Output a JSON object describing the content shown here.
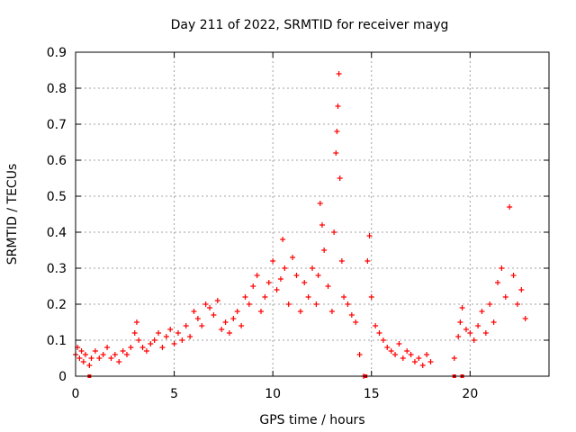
{
  "chart_data": {
    "type": "scatter",
    "title": "Day 211 of 2022, SRMTID for receiver mayg",
    "xlabel": "GPS time / hours",
    "ylabel": "SRMTID / TECUs",
    "xlim": [
      0,
      24
    ],
    "ylim": [
      0,
      0.9
    ],
    "xticks": [
      0,
      5,
      10,
      15,
      20
    ],
    "xtick_labels": [
      "0",
      "5",
      "10",
      "15",
      "20"
    ],
    "yticks": [
      0,
      0.1,
      0.2,
      0.3,
      0.4,
      0.5,
      0.6,
      0.7,
      0.8,
      0.9
    ],
    "ytick_labels": [
      "0",
      "0.1",
      "0.2",
      "0.3",
      "0.4",
      "0.5",
      "0.6",
      "0.7",
      "0.8",
      "0.9"
    ],
    "grid": true,
    "marker": "plus",
    "color": "#ff0000",
    "series": [
      {
        "name": "SRMTID",
        "x": [
          0.0,
          0.1,
          0.2,
          0.3,
          0.4,
          0.5,
          0.7,
          0.8,
          1.0,
          1.2,
          1.4,
          1.6,
          1.8,
          2.0,
          2.2,
          2.4,
          2.6,
          2.8,
          3.0,
          3.1,
          3.2,
          3.4,
          3.6,
          3.8,
          4.0,
          4.2,
          4.4,
          4.6,
          4.8,
          5.0,
          5.2,
          5.4,
          5.6,
          5.8,
          6.0,
          6.2,
          6.4,
          6.6,
          6.8,
          7.0,
          7.2,
          7.4,
          7.6,
          7.8,
          8.0,
          8.2,
          8.4,
          8.6,
          8.8,
          9.0,
          9.2,
          9.4,
          9.6,
          9.8,
          10.0,
          10.2,
          10.4,
          10.5,
          10.6,
          10.8,
          11.0,
          11.2,
          11.4,
          11.6,
          11.8,
          12.0,
          12.2,
          12.3,
          12.4,
          12.5,
          12.6,
          12.8,
          13.0,
          13.1,
          13.2,
          13.25,
          13.3,
          13.35,
          13.4,
          13.5,
          13.6,
          13.8,
          14.0,
          14.2,
          14.4,
          14.6,
          14.8,
          14.9,
          15.0,
          15.2,
          15.4,
          15.6,
          15.8,
          16.0,
          16.2,
          16.4,
          16.6,
          16.8,
          17.0,
          17.2,
          17.4,
          17.6,
          17.8,
          18.0,
          19.2,
          19.4,
          19.5,
          19.6,
          19.8,
          20.0,
          20.2,
          20.4,
          20.6,
          20.8,
          21.0,
          21.2,
          21.4,
          21.6,
          21.8,
          22.0,
          22.2,
          22.4,
          22.6,
          22.8
        ],
        "y": [
          0.06,
          0.08,
          0.05,
          0.07,
          0.04,
          0.06,
          0.03,
          0.05,
          0.07,
          0.05,
          0.06,
          0.08,
          0.05,
          0.06,
          0.04,
          0.07,
          0.06,
          0.08,
          0.12,
          0.15,
          0.1,
          0.08,
          0.07,
          0.09,
          0.1,
          0.12,
          0.08,
          0.11,
          0.13,
          0.09,
          0.12,
          0.1,
          0.14,
          0.11,
          0.18,
          0.16,
          0.14,
          0.2,
          0.19,
          0.17,
          0.21,
          0.13,
          0.15,
          0.12,
          0.16,
          0.18,
          0.14,
          0.22,
          0.2,
          0.25,
          0.28,
          0.18,
          0.22,
          0.26,
          0.32,
          0.24,
          0.27,
          0.38,
          0.3,
          0.2,
          0.33,
          0.28,
          0.18,
          0.26,
          0.22,
          0.3,
          0.2,
          0.28,
          0.48,
          0.42,
          0.35,
          0.25,
          0.18,
          0.4,
          0.62,
          0.68,
          0.75,
          0.84,
          0.55,
          0.32,
          0.22,
          0.2,
          0.17,
          0.15,
          0.06,
          0.0,
          0.32,
          0.39,
          0.22,
          0.14,
          0.12,
          0.1,
          0.08,
          0.07,
          0.06,
          0.09,
          0.05,
          0.07,
          0.06,
          0.04,
          0.05,
          0.03,
          0.06,
          0.04,
          0.05,
          0.11,
          0.15,
          0.19,
          0.13,
          0.12,
          0.1,
          0.14,
          0.18,
          0.12,
          0.2,
          0.15,
          0.26,
          0.3,
          0.22,
          0.47,
          0.28,
          0.2,
          0.24,
          0.16
        ]
      }
    ],
    "zero_markers_x": [
      0.7,
      14.7,
      19.2,
      19.6
    ]
  }
}
